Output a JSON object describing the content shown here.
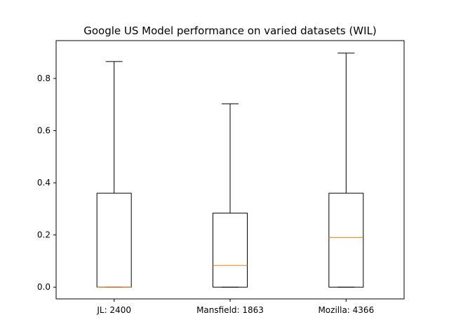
{
  "chart_data": {
    "type": "boxplot",
    "title": "Google US Model performance on varied datasets (WIL)",
    "xlabel": "",
    "ylabel": "",
    "ylim": [
      -0.045,
      0.945
    ],
    "yticks": [
      0.0,
      0.2,
      0.4,
      0.6,
      0.8
    ],
    "ytick_labels": [
      "0.0",
      "0.2",
      "0.4",
      "0.6",
      "0.8"
    ],
    "grid": false,
    "categories": [
      "JL: 2400",
      "Mansfield: 1863",
      "Mozilla: 4366"
    ],
    "boxes": [
      {
        "label": "JL: 2400",
        "whisker_low": 0.0,
        "q1": 0.0,
        "median": 0.0,
        "q3": 0.36,
        "whisker_high": 0.865
      },
      {
        "label": "Mansfield: 1863",
        "whisker_low": 0.0,
        "q1": 0.0,
        "median": 0.083,
        "q3": 0.284,
        "whisker_high": 0.703
      },
      {
        "label": "Mozilla: 4366",
        "whisker_low": 0.0,
        "q1": 0.0,
        "median": 0.19,
        "q3": 0.36,
        "whisker_high": 0.897
      }
    ],
    "colors": {
      "box": "#000000",
      "median": "#ff7f0e",
      "axes": "#000000"
    }
  }
}
